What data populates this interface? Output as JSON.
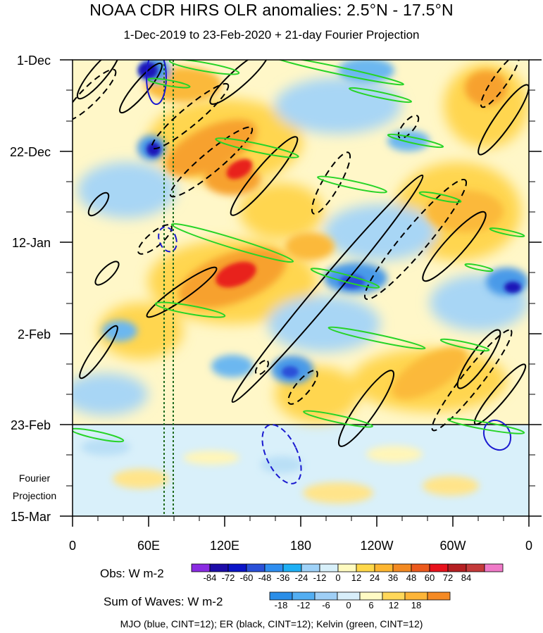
{
  "title": "NOAA CDR HIRS OLR anomalies: 2.5°N - 17.5°N",
  "subtitle": "1-Dec-2019 to 23-Feb-2020 + 21-day Fourier Projection",
  "y_labels": [
    "1-Dec",
    "22-Dec",
    "12-Jan",
    "2-Feb",
    "23-Feb",
    "15-Mar"
  ],
  "x_labels": [
    "0",
    "60E",
    "120E",
    "180",
    "120W",
    "60W",
    "0"
  ],
  "projection_label": [
    "Fourier",
    "Projection"
  ],
  "obs_legend": {
    "label": "Obs: W m-2",
    "ticks": [
      "-84",
      "-72",
      "-60",
      "-48",
      "-36",
      "-24",
      "-12",
      "0",
      "12",
      "24",
      "36",
      "48",
      "60",
      "72",
      "84"
    ],
    "colors": [
      "#8a2be2",
      "#1c0ca8",
      "#0a14c8",
      "#2a50d8",
      "#2f8ef0",
      "#1fb0f5",
      "#9fd2f8",
      "#d8f0fa",
      "#fffbc0",
      "#ffd84a",
      "#fdb631",
      "#f38a22",
      "#ec5a1d",
      "#e8121c",
      "#b51f22",
      "#c43a3a",
      "#f07ac8"
    ]
  },
  "waves_legend": {
    "label": "Sum of Waves: W m-2",
    "ticks": [
      "-18",
      "-12",
      "-6",
      "0",
      "6",
      "12",
      "18"
    ],
    "colors": [
      "#2a8ee8",
      "#53aef2",
      "#9fcff6",
      "#d8eefa",
      "#fffbc4",
      "#ffd85a",
      "#fdb538",
      "#f58a24"
    ]
  },
  "footer": "MJO (blue, CINT=12); ER (black, CINT=12); Kelvin (green, CINT=12)",
  "chart_data": {
    "type": "heatmap",
    "title": "NOAA CDR HIRS OLR anomalies: 2.5°N - 17.5°N",
    "subtitle": "1-Dec-2019 to 23-Feb-2020 + 21-day Fourier Projection",
    "x_axis": {
      "label": "",
      "ticks": [
        "0",
        "60E",
        "120E",
        "180",
        "120W",
        "60W",
        "0"
      ],
      "range_deg": [
        0,
        360
      ]
    },
    "y_axis": {
      "label": "",
      "ticks": [
        "1-Dec",
        "22-Dec",
        "12-Jan",
        "2-Feb",
        "23-Feb",
        "15-Mar"
      ],
      "range": [
        "2019-12-01",
        "2020-03-15"
      ]
    },
    "observation_end": "2020-02-23",
    "reference_lines_lon": [
      72,
      80
    ],
    "features": [
      {
        "kind": "warm",
        "lon": 135,
        "date": "2019-12-26",
        "value": 60
      },
      {
        "kind": "warm",
        "lon": 132,
        "date": "2020-01-19",
        "value": 60
      },
      {
        "kind": "warm",
        "lon": 95,
        "date": "2019-12-19",
        "value": 36
      },
      {
        "kind": "warm",
        "lon": 325,
        "date": "2020-01-04",
        "value": 36
      },
      {
        "kind": "warm",
        "lon": 320,
        "date": "2019-12-04",
        "value": 36
      },
      {
        "kind": "cold",
        "lon": 58,
        "date": "2019-12-02",
        "value": -72
      },
      {
        "kind": "cold",
        "lon": 62,
        "date": "2019-12-20",
        "value": -60
      },
      {
        "kind": "cold",
        "lon": 345,
        "date": "2020-01-21",
        "value": -60
      },
      {
        "kind": "cold",
        "lon": 223,
        "date": "2020-01-21",
        "value": -48
      },
      {
        "kind": "cold",
        "lon": 170,
        "date": "2020-02-11",
        "value": -48
      }
    ],
    "wave_contours": [
      {
        "wave": "ER",
        "color": "black",
        "cint": 12
      },
      {
        "wave": "MJO",
        "color": "blue",
        "cint": 12
      },
      {
        "wave": "Kelvin",
        "color": "green",
        "cint": 12
      }
    ]
  }
}
